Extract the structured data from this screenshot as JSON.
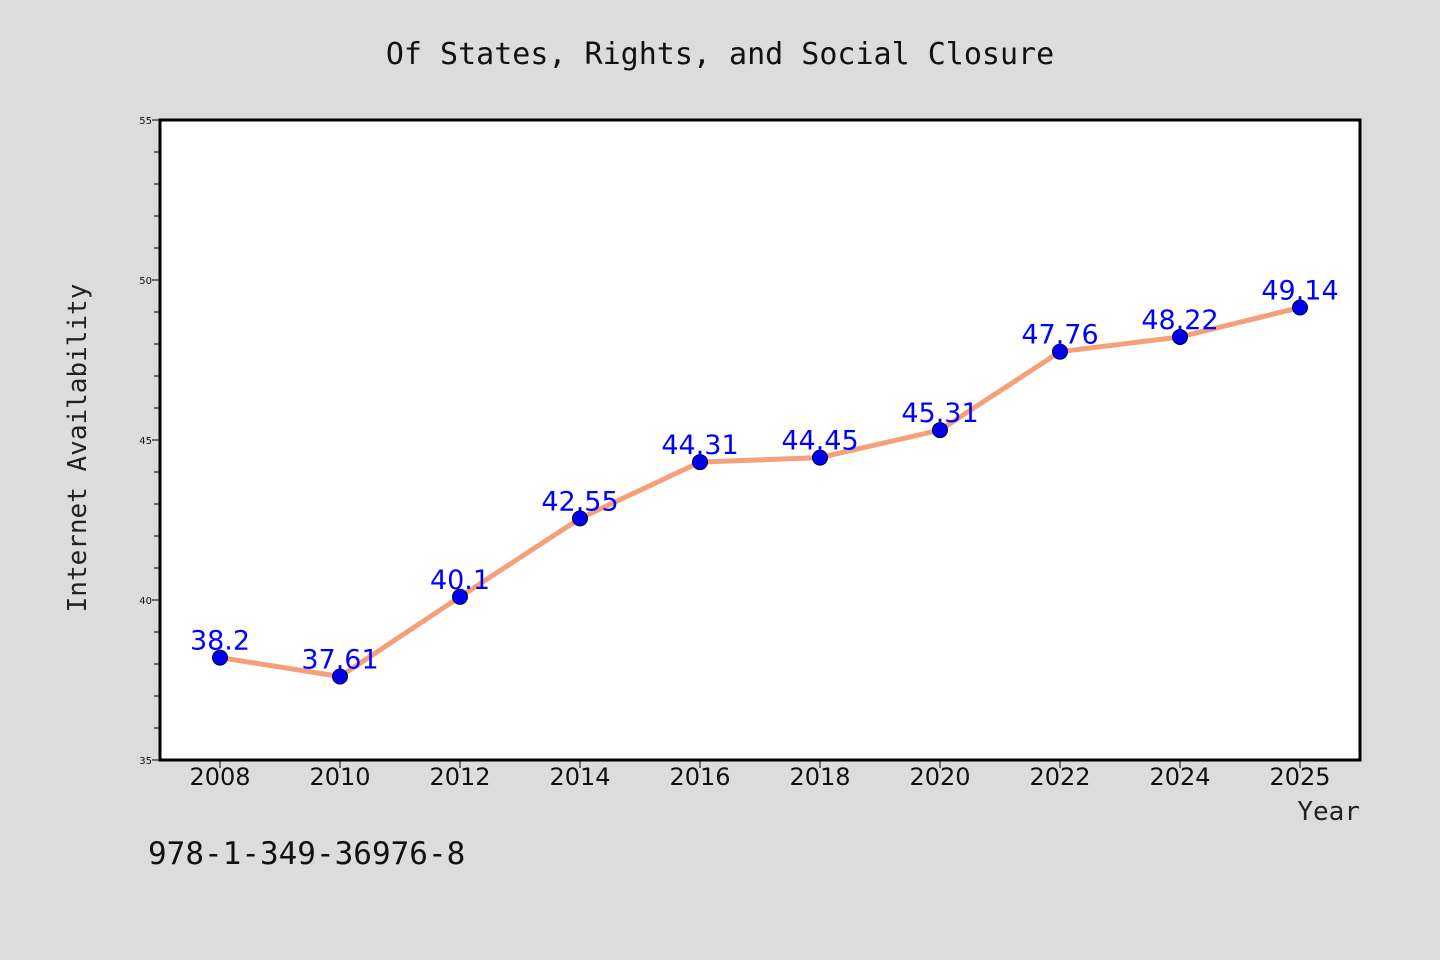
{
  "chart_data": {
    "type": "line",
    "title": "Of States, Rights, and Social Closure",
    "xlabel": "Year",
    "ylabel": "Internet Availability",
    "ylim": [
      35,
      55
    ],
    "y_ticks": [
      "35",
      "40",
      "45",
      "50",
      "55"
    ],
    "x": [
      "2008",
      "2010",
      "2012",
      "2014",
      "2016",
      "2018",
      "2020",
      "2022",
      "2024",
      "2025"
    ],
    "series": [
      {
        "values": [
          38.2,
          37.61,
          40.1,
          42.55,
          44.31,
          44.45,
          45.31,
          47.76,
          48.22,
          49.14
        ],
        "labels": [
          "38.2",
          "37.61",
          "40.1",
          "42.55",
          "44.31",
          "44.45",
          "45.31",
          "47.76",
          "48.22",
          "49.14"
        ]
      }
    ],
    "grid": false,
    "colors": {
      "background": "#dcdcdc",
      "plot_area": "#ffffff",
      "line": "#f4a07a",
      "marker": "#0000ee",
      "marker_edge": "#00003a",
      "label": "#0000ff"
    }
  },
  "footnote": "978-1-349-36976-8"
}
